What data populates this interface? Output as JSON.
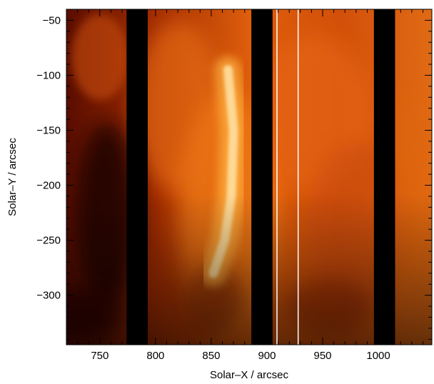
{
  "chart_data": {
    "type": "heatmap",
    "title": "",
    "xlabel": "Solar–X / arcsec",
    "ylabel": "Solar–Y / arcsec",
    "xlim": [
      720,
      1048
    ],
    "ylim": [
      -345,
      -40
    ],
    "x_ticks": [
      750,
      800,
      850,
      900,
      950,
      1000
    ],
    "x_tick_labels": [
      "750",
      "800",
      "850",
      "900",
      "950",
      "1000"
    ],
    "y_ticks": [
      -50,
      -100,
      -150,
      -200,
      -250,
      -300
    ],
    "y_tick_labels": [
      "−50",
      "−100",
      "−150",
      "−200",
      "−250",
      "−300"
    ],
    "colormap": "red-temperature",
    "colors": {
      "dark": "#000000",
      "mid": "#d04a08",
      "bright": "#ffe0a0",
      "white": "#ffffff"
    },
    "data_gaps_x_ranges": [
      [
        774,
        793
      ],
      [
        886,
        905
      ],
      [
        996,
        1015
      ]
    ],
    "slit_lines_x": [
      909,
      928
    ],
    "bright_loop_center_x": [
      865,
      870,
      868,
      862,
      852
    ],
    "bright_loop_center_y": [
      -95,
      -150,
      -210,
      -250,
      -280
    ],
    "grid": false
  }
}
